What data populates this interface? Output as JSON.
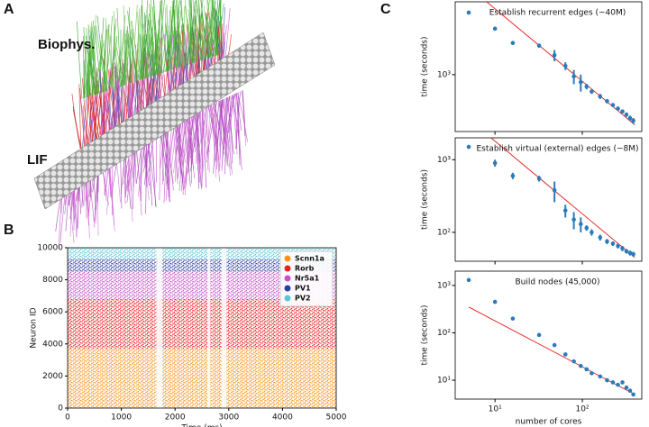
{
  "panel_labels": {
    "a": "A",
    "b": "B",
    "c": "C"
  },
  "panel_a": {
    "labels": [
      "Biophys.",
      "LIF"
    ]
  },
  "chart_data": [
    {
      "type": "raster",
      "xlabel": "Time (ms)",
      "ylabel": "Neuron ID",
      "xlim": [
        0,
        5000
      ],
      "xticks": [
        0,
        1000,
        2000,
        3000,
        4000,
        5000
      ],
      "ylim": [
        0,
        10000
      ],
      "yticks": [
        0,
        2000,
        4000,
        6000,
        8000,
        10000
      ],
      "legend": "upper right",
      "series": [
        {
          "name": "Scnn1a",
          "color": "#f7941d",
          "neuron_id_range": [
            0,
            3700
          ]
        },
        {
          "name": "Rorb",
          "color": "#e8201f",
          "neuron_id_range": [
            3700,
            6800
          ]
        },
        {
          "name": "Nr5a1",
          "color": "#c452c8",
          "neuron_id_range": [
            6800,
            8500
          ]
        },
        {
          "name": "PV1",
          "color": "#2f3f9f",
          "neuron_id_range": [
            8500,
            9300
          ]
        },
        {
          "name": "PV2",
          "color": "#5cc8d4",
          "neuron_id_range": [
            9300,
            10000
          ]
        }
      ],
      "quiet_intervals": [
        [
          1650,
          1760
        ],
        [
          2610,
          2660
        ],
        [
          2870,
          2960
        ]
      ]
    },
    {
      "type": "loglog",
      "annotation": "Establish recurrent edges (~40M)",
      "ylabel": "time (seconds)",
      "color": "#2b7bba",
      "fit_color": "#e8201f",
      "x": [
        5,
        10,
        16,
        32,
        48,
        64,
        80,
        96,
        112,
        128,
        160,
        192,
        224,
        256,
        288,
        320,
        352,
        384
      ],
      "values": [
        6500,
        4000,
        2600,
        2400,
        1800,
        1300,
        950,
        800,
        700,
        600,
        520,
        450,
        400,
        360,
        330,
        300,
        270,
        250
      ],
      "errors": [
        0,
        150,
        100,
        150,
        300,
        150,
        200,
        200,
        60,
        40,
        40,
        30,
        20,
        20,
        20,
        20,
        20,
        20
      ],
      "fit": {
        "x": [
          8,
          400
        ],
        "values": [
          9000,
          220
        ]
      },
      "xlim": [
        3.5,
        480
      ],
      "ylim": [
        180,
        9000
      ],
      "xticks": [
        {
          "value": 10,
          "label": "10¹"
        },
        {
          "value": 100,
          "label": "10²"
        }
      ],
      "yticks": [
        {
          "value": 1000,
          "label": "10³"
        }
      ]
    },
    {
      "type": "loglog",
      "annotation": "Establish virtual (external) edges (~8M)",
      "ylabel": "time (seconds)",
      "color": "#2b7bba",
      "fit_color": "#e8201f",
      "x": [
        5,
        10,
        16,
        32,
        48,
        64,
        80,
        96,
        112,
        128,
        160,
        192,
        224,
        256,
        288,
        320,
        352,
        384
      ],
      "values": [
        1500,
        900,
        600,
        550,
        380,
        200,
        150,
        130,
        115,
        100,
        85,
        75,
        70,
        65,
        60,
        55,
        52,
        50
      ],
      "errors": [
        0,
        100,
        60,
        50,
        120,
        40,
        40,
        30,
        10,
        10,
        8,
        6,
        5,
        5,
        5,
        4,
        4,
        4
      ],
      "fit": {
        "x": [
          9,
          400
        ],
        "values": [
          2000,
          45
        ]
      },
      "xlim": [
        3.5,
        480
      ],
      "ylim": [
        40,
        2000
      ],
      "xticks": [
        {
          "value": 10,
          "label": "10¹"
        },
        {
          "value": 100,
          "label": "10²"
        }
      ],
      "yticks": [
        {
          "value": 100,
          "label": "10²"
        },
        {
          "value": 1000,
          "label": "10³"
        }
      ]
    },
    {
      "type": "loglog",
      "annotation": "Build nodes (45,000)",
      "ylabel": "time (seconds)",
      "xlabel": "number of cores",
      "color": "#2b7bba",
      "fit_color": "#e8201f",
      "x": [
        5,
        10,
        16,
        32,
        48,
        64,
        80,
        96,
        112,
        128,
        160,
        192,
        224,
        256,
        288,
        320,
        352,
        384
      ],
      "values": [
        1300,
        450,
        200,
        90,
        55,
        35,
        25,
        20,
        17,
        14,
        12,
        10,
        9,
        8,
        9,
        7,
        6,
        5
      ],
      "errors": [
        0,
        0,
        0,
        0,
        0,
        0,
        0,
        0,
        0,
        0,
        0,
        0,
        0,
        0,
        0,
        0,
        0,
        0
      ],
      "fit": {
        "x": [
          5,
          400
        ],
        "values": [
          350,
          5
        ]
      },
      "xlim": [
        3.5,
        480
      ],
      "ylim": [
        4,
        2000
      ],
      "xticks": [
        {
          "value": 10,
          "label": "10¹"
        },
        {
          "value": 100,
          "label": "10²"
        }
      ],
      "yticks": [
        {
          "value": 10,
          "label": "10¹"
        },
        {
          "value": 100,
          "label": "10²"
        },
        {
          "value": 1000,
          "label": "10³"
        }
      ]
    }
  ]
}
